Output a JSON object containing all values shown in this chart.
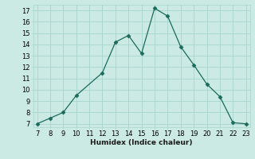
{
  "x": [
    7,
    8,
    9,
    10,
    12,
    13,
    14,
    15,
    16,
    17,
    18,
    19,
    20,
    21,
    22,
    23
  ],
  "y": [
    7.0,
    7.5,
    8.0,
    9.5,
    11.5,
    14.2,
    14.8,
    13.2,
    17.2,
    16.5,
    13.8,
    12.2,
    10.5,
    9.4,
    7.1,
    7.0
  ],
  "xlim": [
    6.7,
    23.3
  ],
  "ylim": [
    6.7,
    17.5
  ],
  "xticks": [
    7,
    8,
    9,
    10,
    11,
    12,
    13,
    14,
    15,
    16,
    17,
    18,
    19,
    20,
    21,
    22,
    23
  ],
  "yticks": [
    7,
    8,
    9,
    10,
    11,
    12,
    13,
    14,
    15,
    16,
    17
  ],
  "xlabel": "Humidex (Indice chaleur)",
  "line_color": "#1a6b5a",
  "marker": "D",
  "marker_size": 2.5,
  "bg_color": "#cceae4",
  "grid_color": "#a8d5ce",
  "axis_fontsize": 6.5,
  "tick_fontsize": 6.0
}
